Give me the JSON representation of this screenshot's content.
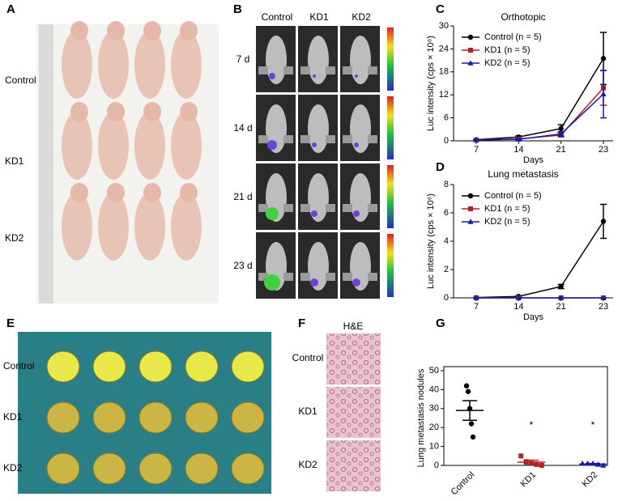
{
  "panels": {
    "A": {
      "label": "A",
      "rows": [
        "Control",
        "KD1",
        "KD2"
      ]
    },
    "B": {
      "label": "B",
      "columns": [
        "Control",
        "KD1",
        "KD2"
      ],
      "rows": [
        "7 d",
        "14 d",
        "21 d",
        "23 d"
      ]
    },
    "C": {
      "label": "C"
    },
    "D": {
      "label": "D"
    },
    "E": {
      "label": "E",
      "rows": [
        "Control",
        "KD1",
        "KD2"
      ]
    },
    "F": {
      "label": "F",
      "title": "H&E",
      "rows": [
        "Control",
        "KD1",
        "KD2"
      ]
    },
    "G": {
      "label": "G"
    }
  },
  "chart_data": [
    {
      "type": "line",
      "title": "Orthotopic",
      "xlabel": "Days",
      "ylabel": "Luc intensity (cps × 10⁶)",
      "categories": [
        "7",
        "14",
        "21",
        "23"
      ],
      "ylim": [
        0,
        30
      ],
      "yticks": [
        0,
        6,
        12,
        18,
        24,
        30
      ],
      "legend": "upper left",
      "series": [
        {
          "name": "Control (n = 5)",
          "color": "#000000",
          "marker": "circle",
          "values": [
            0.3,
            1.0,
            3.2,
            21.5
          ],
          "errors": [
            0.1,
            0.3,
            1.0,
            6.8
          ]
        },
        {
          "name": "KD1 (n = 5)",
          "color": "#b22222",
          "marker": "square",
          "values": [
            0.2,
            0.5,
            1.5,
            13.8
          ],
          "errors": [
            0.05,
            0.2,
            0.5,
            4.5
          ]
        },
        {
          "name": "KD2 (n = 5)",
          "color": "#1a1aa6",
          "marker": "triangle",
          "values": [
            0.2,
            0.4,
            1.8,
            12.2
          ],
          "errors": [
            0.05,
            0.2,
            0.6,
            6.2
          ]
        }
      ]
    },
    {
      "type": "line",
      "title": "Lung metastasis",
      "xlabel": "Days",
      "ylabel": "Luc intensity (cps × 10⁶)",
      "categories": [
        "7",
        "14",
        "21",
        "23"
      ],
      "ylim": [
        0,
        8
      ],
      "yticks": [
        0,
        2,
        4,
        6,
        8
      ],
      "legend": "upper left",
      "series": [
        {
          "name": "Control (n = 5)",
          "color": "#000000",
          "marker": "circle",
          "values": [
            0.02,
            0.1,
            0.8,
            5.4
          ],
          "errors": [
            0.01,
            0.05,
            0.15,
            1.2
          ]
        },
        {
          "name": "KD1 (n = 5)",
          "color": "#b22222",
          "marker": "square",
          "values": [
            0,
            0,
            0,
            0
          ],
          "errors": [
            0,
            0,
            0,
            0
          ]
        },
        {
          "name": "KD2 (n = 5)",
          "color": "#1a1aa6",
          "marker": "triangle",
          "values": [
            0,
            0,
            0,
            0
          ],
          "errors": [
            0,
            0,
            0,
            0
          ]
        }
      ]
    },
    {
      "type": "dot",
      "ylabel": "Lung metastasis nodules",
      "ylim": [
        0,
        50
      ],
      "yticks": [
        0,
        10,
        20,
        30,
        40,
        50
      ],
      "groups": [
        {
          "name": "Control",
          "color": "#000000",
          "marker": "circle",
          "values": [
            42,
            39,
            30,
            22,
            15
          ],
          "mean": 29,
          "sem": 5.2
        },
        {
          "name": "KD1",
          "color": "#b22222",
          "marker": "square",
          "values": [
            5,
            2,
            1,
            0.5,
            0
          ],
          "mean": 1.7,
          "sem": 1,
          "annotation": "*"
        },
        {
          "name": "KD2",
          "color": "#1a1aa6",
          "marker": "triangle",
          "values": [
            1,
            1,
            1,
            0.5,
            0
          ],
          "mean": 0.7,
          "sem": 0.3,
          "annotation": "*"
        }
      ]
    }
  ]
}
